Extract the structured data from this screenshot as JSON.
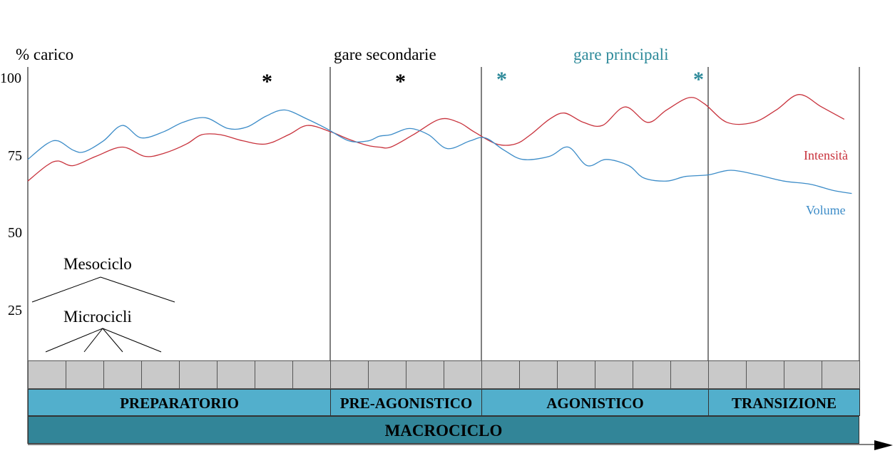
{
  "colors": {
    "intensita": "#c8323c",
    "volume": "#3c8cc8",
    "gare_principali": "#2e8a9a",
    "phase_bar": "#52afcc",
    "macro_bar": "#328598",
    "cells": "#c9c9c9"
  },
  "header": {
    "y_title": "% carico",
    "gare_secondarie": "gare secondarie",
    "gare_principali": "gare principali"
  },
  "markers": [
    "*",
    "*",
    "*",
    "*"
  ],
  "tree": {
    "mesociclo": "Mesociclo",
    "microcicli": "Microcicli"
  },
  "phases": [
    "PREPARATORIO",
    "PRE-AGONISTICO",
    "AGONISTICO",
    "TRANSIZIONE"
  ],
  "macrociclo": "MACROCICLO",
  "chart_data": {
    "type": "line",
    "ylim": [
      0,
      100
    ],
    "yticks": [
      25,
      50,
      75,
      100
    ],
    "grid": false,
    "weeks": 22,
    "phase_bounds_weeks": [
      8,
      12,
      18,
      22
    ],
    "series": [
      {
        "name": "Intensità",
        "x": [
          0,
          0.5,
          0.8,
          1.2,
          1.8,
          2.5,
          3.1,
          3.6,
          4.2,
          4.6,
          5.1,
          5.7,
          6.3,
          6.9,
          7.4,
          8.0,
          8.5,
          9.0,
          9.3,
          9.6,
          10.2,
          10.9,
          11.4,
          11.8,
          12.4,
          12.9,
          13.3,
          13.8,
          14.2,
          14.7,
          15.2,
          15.8,
          16.4,
          16.9,
          17.5,
          17.9,
          18.5,
          19.2,
          19.8,
          20.4,
          21.0,
          21.6
        ],
        "values": [
          67,
          72,
          73.5,
          72,
          75,
          78,
          75,
          76,
          79,
          82,
          82,
          80,
          79,
          82,
          85,
          83,
          80.5,
          78.5,
          78,
          78,
          82,
          87,
          86,
          83,
          79,
          79,
          82,
          87,
          89,
          86,
          85,
          91,
          86,
          90,
          94,
          92,
          86,
          86,
          90,
          95,
          91,
          87
        ]
      },
      {
        "name": "Volume",
        "x": [
          0,
          0.5,
          0.8,
          1.2,
          1.5,
          2.0,
          2.5,
          3.0,
          3.6,
          4.1,
          4.7,
          5.3,
          5.8,
          6.3,
          6.8,
          7.4,
          7.9,
          8.5,
          9.0,
          9.3,
          9.6,
          10.1,
          10.6,
          11.1,
          11.7,
          12.1,
          12.6,
          13.1,
          13.8,
          14.3,
          14.8,
          15.3,
          15.9,
          16.3,
          16.9,
          17.4,
          18.0,
          18.6,
          19.3,
          20.0,
          20.7,
          21.3,
          21.8
        ],
        "values": [
          74,
          79,
          80,
          77,
          76.5,
          80,
          85,
          81,
          83,
          86,
          87.5,
          84,
          84.5,
          88,
          90,
          87,
          84,
          80,
          80,
          81.5,
          82,
          84,
          82,
          77.5,
          80,
          81,
          77,
          74,
          75,
          78,
          72,
          74,
          72,
          68,
          67,
          68.5,
          69,
          70.5,
          69,
          67,
          66,
          64,
          63
        ]
      }
    ]
  }
}
